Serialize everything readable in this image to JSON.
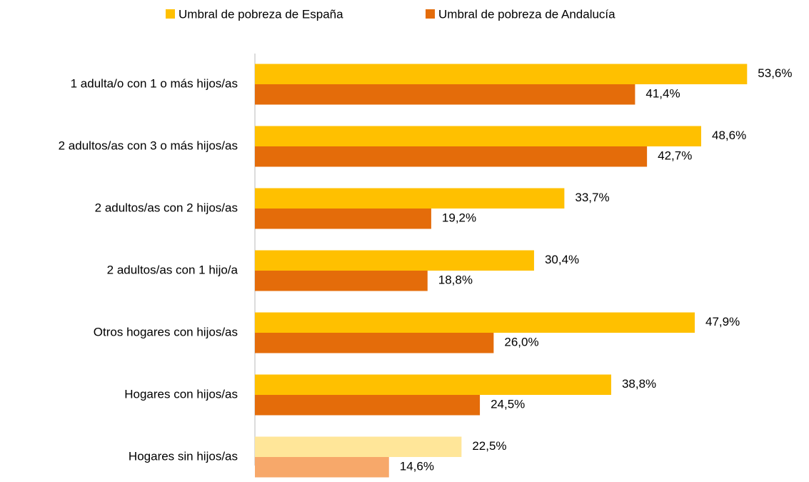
{
  "chart_data": {
    "type": "hbar",
    "categories": [
      "1 adulta/o con 1 o más hijos/as",
      "2 adultos/as con 3 o más hijos/as",
      "2 adultos/as con 2 hijos/as",
      "2 adultos/as con 1 hijo/a",
      "Otros hogares con hijos/as",
      "Hogares con hijos/as",
      "Hogares sin hijos/as"
    ],
    "series": [
      {
        "name": "Umbral de pobreza de España",
        "color": "#FFC000",
        "colors": [
          "#FFC000",
          "#FFC000",
          "#FFC000",
          "#FFC000",
          "#FFC000",
          "#FFC000",
          "#FFE699"
        ],
        "values": [
          53.6,
          48.6,
          33.7,
          30.4,
          47.9,
          38.8,
          22.5
        ],
        "value_labels": [
          "53,6%",
          "48,6%",
          "33,7%",
          "30,4%",
          "47,9%",
          "38,8%",
          "22,5%"
        ]
      },
      {
        "name": "Umbral de pobreza de Andalucía",
        "color": "#E46C0A",
        "colors": [
          "#E46C0A",
          "#E46C0A",
          "#E46C0A",
          "#E46C0A",
          "#E46C0A",
          "#E46C0A",
          "#F7A86A"
        ],
        "values": [
          41.4,
          42.7,
          19.2,
          18.8,
          26.0,
          24.5,
          14.6
        ],
        "value_labels": [
          "41,4%",
          "42,7%",
          "19,2%",
          "18,8%",
          "26,0%",
          "24,5%",
          "14,6%"
        ]
      }
    ],
    "legend": "top"
  }
}
